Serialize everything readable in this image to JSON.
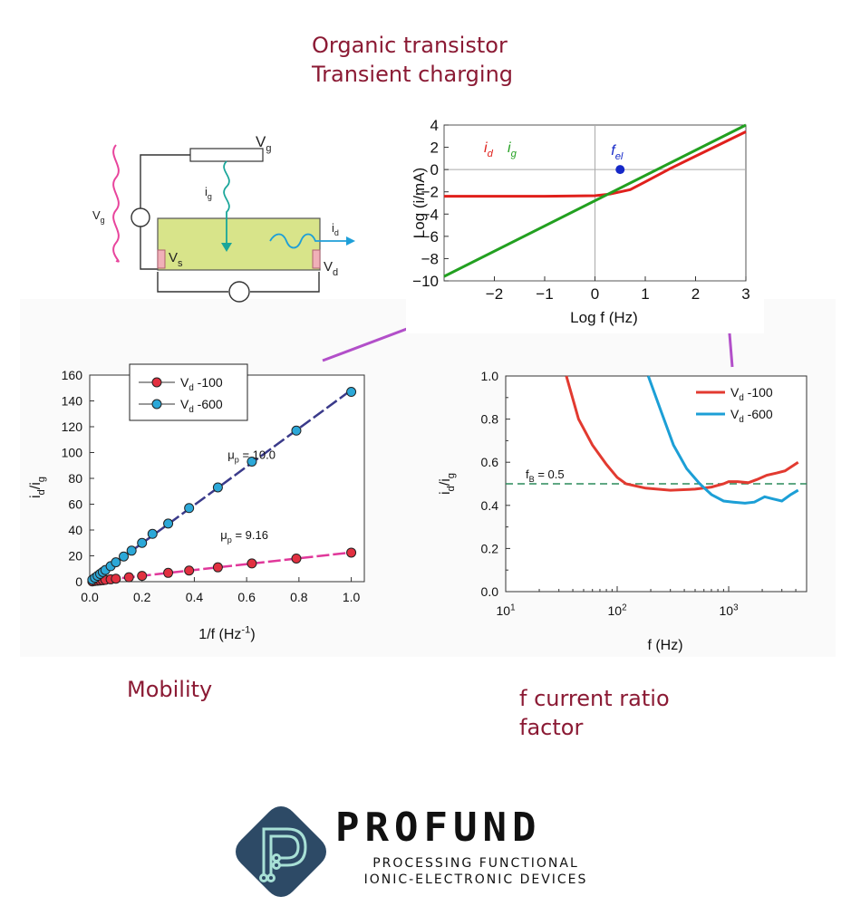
{
  "header": {
    "title_line1": "Organic transistor",
    "title_line2": "Transient charging"
  },
  "captions": {
    "mobility": "Mobility",
    "ratio_line1": "f current ratio",
    "ratio_line2": "factor"
  },
  "circuit": {
    "vg_label": "V",
    "vg_sub": "g",
    "ig_label": "i",
    "ig_sub": "g",
    "vg_top_label": "V",
    "vg_top_sub": "g",
    "id_label": "i",
    "id_sub": "d",
    "vs_label": "V",
    "vs_sub": "s",
    "vd_label": "V",
    "vd_sub": "d",
    "colors": {
      "channel": "#d8e48a",
      "ac_wave": "#e8449c",
      "ig_arrow": "#1aa69a",
      "id_arrow": "#1e9fd8"
    }
  },
  "chart_data": [
    {
      "type": "line",
      "xlabel": "Log f (Hz)",
      "ylabel": "Log (i/mA)",
      "xlim": [
        -3,
        3
      ],
      "ylim": [
        -10,
        4
      ],
      "xticks": [
        "−2",
        "−1",
        "0",
        "1",
        "2",
        "3"
      ],
      "yticks": [
        "4",
        "2",
        "0",
        "−2",
        "−4",
        "−6",
        "−8",
        "−10"
      ],
      "legend": [
        {
          "label": "i",
          "sub": "d",
          "color": "#e0201c"
        },
        {
          "label": "i",
          "sub": "g",
          "color": "#22a020"
        }
      ],
      "annotation": {
        "label": "f",
        "sub": "el",
        "x": 0.5,
        "y": 0,
        "color": "#1528c8"
      },
      "series": [
        {
          "name": "id",
          "color": "#e0201c",
          "x": [
            -3,
            -2,
            -1,
            0,
            0.3,
            0.7,
            1,
            1.5,
            2,
            2.5,
            3
          ],
          "y": [
            -2.4,
            -2.4,
            -2.4,
            -2.35,
            -2.2,
            -1.8,
            -1.1,
            0.1,
            1.2,
            2.3,
            3.4
          ]
        },
        {
          "name": "ig",
          "color": "#22a020",
          "x": [
            -3,
            3
          ],
          "y": [
            -9.6,
            4.0
          ]
        }
      ]
    },
    {
      "type": "scatter",
      "xlabel": "1/f (Hz",
      "xlabel_sup": "-1",
      "xlabel_end": ")",
      "ylabel": "i",
      "ylabel_sub1": "d",
      "ylabel_mid": "/i",
      "ylabel_sub2": "g",
      "xlim": [
        0,
        1.05
      ],
      "ylim": [
        0,
        160
      ],
      "xticks": [
        "0.0",
        "0.2",
        "0.4",
        "0.6",
        "0.8",
        "1.0"
      ],
      "yticks": [
        "0",
        "20",
        "40",
        "60",
        "80",
        "100",
        "120",
        "140",
        "160"
      ],
      "annotations": [
        {
          "label": "μ",
          "sub": "p",
          "text": " = 10.0",
          "x": 0.5,
          "y": 95
        },
        {
          "label": "μ",
          "sub": "p",
          "text": " = 9.16",
          "x": 0.5,
          "y": 33
        }
      ],
      "legend_position": "top-left",
      "series": [
        {
          "name": "V",
          "sub": "d",
          "text": " -100",
          "color": "#e23040",
          "fit_color": "#e0389a",
          "x": [
            0.01,
            0.02,
            0.03,
            0.04,
            0.05,
            0.06,
            0.08,
            0.1,
            0.15,
            0.2,
            0.3,
            0.38,
            0.49,
            0.62,
            0.79,
            1.0
          ],
          "y": [
            0.2,
            0.5,
            0.7,
            0.9,
            1.1,
            1.4,
            1.8,
            2.3,
            3.4,
            4.5,
            6.8,
            8.6,
            11.1,
            14.1,
            17.9,
            22.5
          ]
        },
        {
          "name": "V",
          "sub": "d",
          "text": " -600",
          "color": "#2ca8d8",
          "fit_color": "#3a3a8a",
          "x": [
            0.01,
            0.02,
            0.03,
            0.04,
            0.05,
            0.06,
            0.08,
            0.1,
            0.13,
            0.16,
            0.2,
            0.24,
            0.3,
            0.38,
            0.49,
            0.62,
            0.79,
            1.0
          ],
          "y": [
            1.5,
            3,
            4.5,
            6,
            7.5,
            9,
            12,
            15,
            19.5,
            24,
            30,
            37,
            45,
            57,
            73,
            93,
            117,
            147
          ]
        }
      ]
    },
    {
      "type": "line",
      "xlabel": "f (Hz)",
      "ylabel": "i",
      "ylabel_sub1": "d",
      "ylabel_mid": "/i",
      "ylabel_sub2": "g",
      "xscale": "log",
      "xlim": [
        10,
        5000
      ],
      "ylim": [
        0,
        1.0
      ],
      "xticks": [
        {
          "base": "10",
          "exp": "1"
        },
        {
          "base": "10",
          "exp": "2"
        },
        {
          "base": "10",
          "exp": "3"
        }
      ],
      "yticks": [
        "0.0",
        "0.2",
        "0.4",
        "0.6",
        "0.8",
        "1.0"
      ],
      "reference": {
        "label": "f",
        "sub": "B",
        "text": " = 0.5",
        "y": 0.5,
        "color": "#2a8a5a"
      },
      "legend_position": "top-right",
      "series": [
        {
          "name": "V",
          "sub": "d",
          "text": " -100",
          "color": "#e23a30",
          "x": [
            35,
            45,
            60,
            80,
            100,
            120,
            180,
            300,
            500,
            700,
            900,
            1000,
            1200,
            1500,
            1800,
            2200,
            2700,
            3200,
            4200
          ],
          "y": [
            1.0,
            0.8,
            0.68,
            0.59,
            0.53,
            0.5,
            0.48,
            0.47,
            0.475,
            0.485,
            0.5,
            0.51,
            0.51,
            0.505,
            0.52,
            0.54,
            0.55,
            0.56,
            0.6
          ]
        },
        {
          "name": "V",
          "sub": "d",
          "text": " -600",
          "color": "#1c9fd6",
          "x": [
            190,
            250,
            320,
            420,
            550,
            700,
            900,
            1100,
            1400,
            1700,
            2100,
            2500,
            3000,
            3600,
            4200
          ],
          "y": [
            1.0,
            0.83,
            0.68,
            0.57,
            0.5,
            0.45,
            0.42,
            0.415,
            0.41,
            0.415,
            0.44,
            0.43,
            0.42,
            0.45,
            0.47
          ]
        }
      ]
    }
  ],
  "logo": {
    "wordmark": "PROFUND",
    "tagline1": "PROCESSING FUNCTIONAL",
    "tagline2": "IONIC-ELECTRONIC DEVICES",
    "colors": {
      "diamond": "#2d4a66",
      "glyph": "#a8e0d6"
    }
  },
  "connectors": {
    "color": "#b24fc9"
  }
}
